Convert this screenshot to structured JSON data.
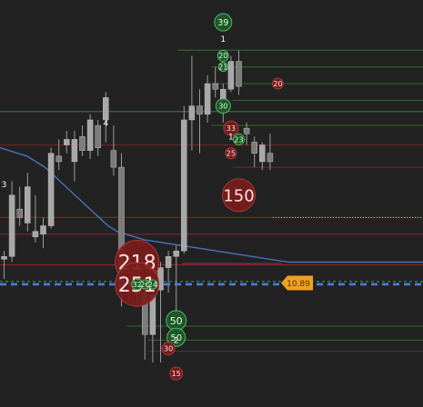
{
  "chart_data": {
    "type": "candlestick",
    "ylim": [
      6.4,
      21.0
    ],
    "background": "#222222",
    "candle_color": "#9a9a9a",
    "candles": [
      {
        "o": 11.7,
        "h": 12.0,
        "l": 11.0,
        "c": 11.8
      },
      {
        "o": 11.8,
        "h": 14.5,
        "l": 11.6,
        "c": 14.0
      },
      {
        "o": 13.5,
        "h": 14.3,
        "l": 12.9,
        "c": 13.2
      },
      {
        "o": 13.0,
        "h": 14.8,
        "l": 12.7,
        "c": 14.3
      },
      {
        "o": 12.5,
        "h": 14.0,
        "l": 12.3,
        "c": 12.7
      },
      {
        "o": 12.6,
        "h": 13.2,
        "l": 12.1,
        "c": 12.9
      },
      {
        "o": 12.9,
        "h": 15.7,
        "l": 12.8,
        "c": 15.5
      },
      {
        "o": 15.4,
        "h": 16.0,
        "l": 14.9,
        "c": 15.2
      },
      {
        "o": 15.8,
        "h": 16.3,
        "l": 15.5,
        "c": 16.0
      },
      {
        "o": 15.2,
        "h": 16.3,
        "l": 14.5,
        "c": 16.0
      },
      {
        "o": 16.1,
        "h": 16.5,
        "l": 15.4,
        "c": 15.6
      },
      {
        "o": 15.6,
        "h": 16.9,
        "l": 15.3,
        "c": 16.7
      },
      {
        "o": 16.5,
        "h": 16.7,
        "l": 15.4,
        "c": 15.7
      },
      {
        "o": 16.7,
        "h": 17.7,
        "l": 15.9,
        "c": 17.5
      },
      {
        "o": 15.6,
        "h": 16.5,
        "l": 14.7,
        "c": 15.0
      },
      {
        "o": 15.0,
        "h": 15.5,
        "l": 10.0,
        "c": 10.6
      },
      {
        "o": 10.8,
        "h": 11.8,
        "l": 10.2,
        "c": 11.5
      },
      {
        "o": 11.3,
        "h": 11.5,
        "l": 10.1,
        "c": 10.5
      },
      {
        "o": 10.5,
        "h": 11.0,
        "l": 8.1,
        "c": 9.0
      },
      {
        "o": 9.0,
        "h": 10.8,
        "l": 8.0,
        "c": 10.4
      },
      {
        "o": 10.6,
        "h": 11.6,
        "l": 8.0,
        "c": 11.4
      },
      {
        "o": 11.4,
        "h": 12.0,
        "l": 10.5,
        "c": 11.8
      },
      {
        "o": 11.8,
        "h": 12.2,
        "l": 9.5,
        "c": 12.0
      },
      {
        "o": 12.0,
        "h": 17.2,
        "l": 11.9,
        "c": 16.7
      },
      {
        "o": 16.7,
        "h": 19.0,
        "l": 15.6,
        "c": 17.2
      },
      {
        "o": 17.2,
        "h": 17.8,
        "l": 15.5,
        "c": 16.9
      },
      {
        "o": 16.9,
        "h": 18.3,
        "l": 16.6,
        "c": 18.0
      },
      {
        "o": 18.0,
        "h": 18.6,
        "l": 17.5,
        "c": 17.8
      },
      {
        "o": 17.4,
        "h": 18.0,
        "l": 16.6,
        "c": 17.8
      },
      {
        "o": 17.8,
        "h": 19.0,
        "l": 17.7,
        "c": 18.8
      },
      {
        "o": 18.8,
        "h": 19.2,
        "l": 17.6,
        "c": 17.9
      },
      {
        "o": 16.4,
        "h": 16.6,
        "l": 15.8,
        "c": 16.2
      },
      {
        "o": 15.9,
        "h": 16.1,
        "l": 15.0,
        "c": 15.5
      },
      {
        "o": 15.2,
        "h": 15.9,
        "l": 14.9,
        "c": 15.8
      },
      {
        "o": 15.5,
        "h": 16.2,
        "l": 14.9,
        "c": 15.2
      }
    ],
    "moving_average": {
      "color": "#4a6fc0",
      "values": [
        15.7,
        15.6,
        15.5,
        15.4,
        15.2,
        15.0,
        14.7,
        14.4,
        14.1,
        13.8,
        13.5,
        13.2,
        12.9,
        12.7,
        12.6,
        12.5,
        12.4,
        12.35,
        12.3,
        12.25,
        12.2,
        12.15,
        12.1,
        12.05,
        12.0,
        11.95,
        11.9,
        11.85,
        11.8,
        11.75,
        11.7,
        11.65,
        11.6,
        11.6,
        11.6,
        11.6,
        11.6,
        11.6,
        11.6,
        11.6,
        11.6,
        11.6,
        11.6,
        11.6,
        11.6,
        11.6,
        11.6,
        11.6
      ]
    },
    "horizontal_levels": [
      {
        "y": 17.0,
        "color": "#3d7a3a",
        "from": 0.0
      },
      {
        "y": 19.2,
        "color": "#2f6a2d",
        "from": 0.42
      },
      {
        "y": 18.6,
        "color": "#2f6a2d",
        "from": 0.5
      },
      {
        "y": 18.0,
        "color": "#2f6a2d",
        "from": 0.5
      },
      {
        "y": 17.4,
        "color": "#2f6a2d",
        "from": 0.55
      },
      {
        "y": 16.5,
        "color": "#2f6a2d",
        "from": 0.5
      },
      {
        "y": 15.8,
        "color": "#7a2626",
        "from": 0.0
      },
      {
        "y": 15.0,
        "color": "#7a2626",
        "from": 0.55
      },
      {
        "y": 13.2,
        "color": "#8a2222",
        "from": 0.0
      },
      {
        "y": 12.6,
        "color": "#8a2222",
        "from": 0.0
      },
      {
        "y": 11.5,
        "color": "#9a2525",
        "from": 0.0
      },
      {
        "y": 9.3,
        "color": "#2f6a2d",
        "from": 0.3
      },
      {
        "y": 8.8,
        "color": "#2f6a2d",
        "from": 0.35
      },
      {
        "y": 8.4,
        "color": "#3a3a3a",
        "from": 0.35
      }
    ],
    "price_line": {
      "y": 10.8,
      "color": "#4a7de0",
      "dashed": true
    },
    "avg_line": {
      "y": 10.9,
      "color": "#3cc48a",
      "dashed": true
    },
    "last_price_line": {
      "y": 13.2,
      "color": "#bbbbbb",
      "dotted": true
    },
    "price_tag": {
      "y": 10.85,
      "value": "10.89",
      "color": "#f0a020"
    },
    "bubbles": [
      {
        "candle": 0,
        "y": 14.4,
        "label": "3",
        "size": 1,
        "kind": "small"
      },
      {
        "candle": 13,
        "y": 16.6,
        "label": "4",
        "size": 1,
        "kind": "small"
      },
      {
        "candle": 28,
        "y": 20.2,
        "label": "39",
        "size": 19,
        "kind": "buy"
      },
      {
        "candle": 28,
        "y": 19.6,
        "label": "1",
        "size": 1,
        "kind": "small"
      },
      {
        "candle": 28,
        "y": 19.0,
        "label": "20",
        "size": 12,
        "kind": "buy"
      },
      {
        "candle": 28,
        "y": 18.6,
        "label": "21",
        "size": 10,
        "kind": "buy"
      },
      {
        "candle": 28,
        "y": 17.2,
        "label": "30",
        "size": 16,
        "kind": "buy"
      },
      {
        "candle": 29,
        "y": 16.4,
        "label": "33",
        "size": 16,
        "kind": "sell"
      },
      {
        "candle": 29,
        "y": 16.1,
        "label": "1",
        "size": 1,
        "kind": "small"
      },
      {
        "candle": 30,
        "y": 16.0,
        "label": "23",
        "size": 12,
        "kind": "buy"
      },
      {
        "candle": 29,
        "y": 15.5,
        "label": "25",
        "size": 12,
        "kind": "sell"
      },
      {
        "candle": 30,
        "y": 14.0,
        "label": "150",
        "size": 36,
        "kind": "sell"
      },
      {
        "candle": 35,
        "y": 18.0,
        "label": "20",
        "size": 12,
        "kind": "sell"
      },
      {
        "candle": 17,
        "y": 11.6,
        "label": "218",
        "size": 48,
        "kind": "sell"
      },
      {
        "candle": 17,
        "y": 10.8,
        "label": "251",
        "size": 48,
        "kind": "sell"
      },
      {
        "candle": 17,
        "y": 10.8,
        "label": "32",
        "size": 12,
        "kind": "buy"
      },
      {
        "candle": 18,
        "y": 10.8,
        "label": "26",
        "size": 10,
        "kind": "buy"
      },
      {
        "candle": 19,
        "y": 10.8,
        "label": "24",
        "size": 10,
        "kind": "buy"
      },
      {
        "candle": 22,
        "y": 9.5,
        "label": "50",
        "size": 22,
        "kind": "buy"
      },
      {
        "candle": 22,
        "y": 8.9,
        "label": "50",
        "size": 20,
        "kind": "buy"
      },
      {
        "candle": 22,
        "y": 8.8,
        "label": "2",
        "size": 1,
        "kind": "small"
      },
      {
        "candle": 21,
        "y": 8.5,
        "label": "30",
        "size": 14,
        "kind": "sell"
      },
      {
        "candle": 22,
        "y": 7.6,
        "label": "15",
        "size": 14,
        "kind": "sell"
      }
    ]
  }
}
